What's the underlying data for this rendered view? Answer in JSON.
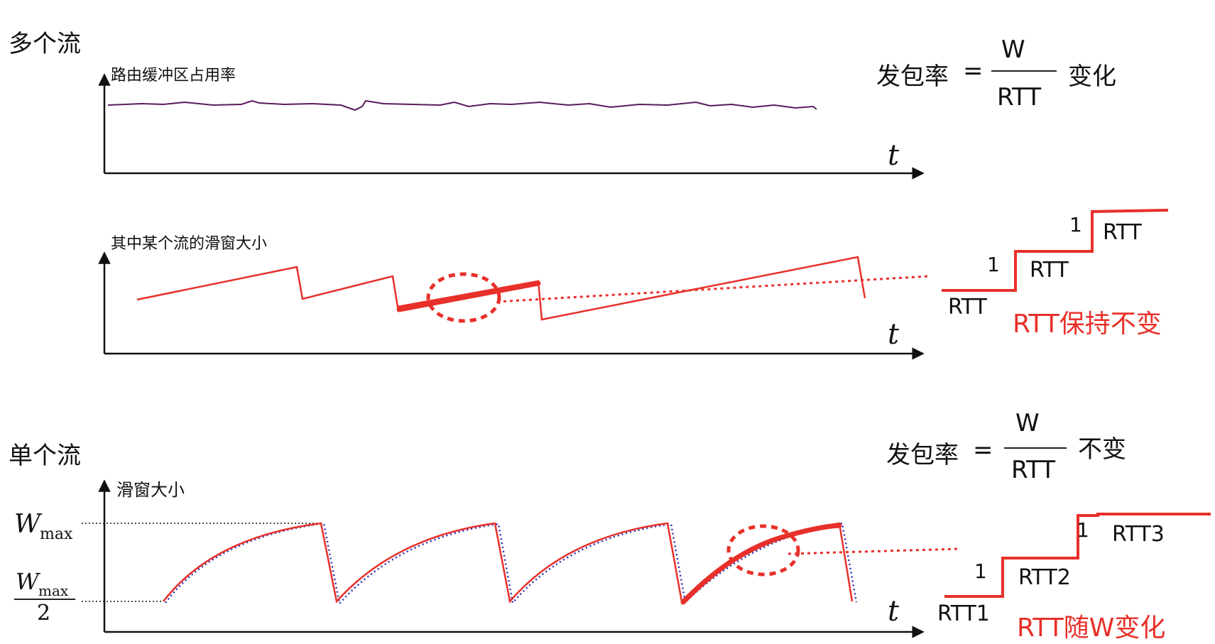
{
  "colors": {
    "red": "#e8302a",
    "purple": "#5b1a5e",
    "blue": "#2a2ab0",
    "axis": "#111111"
  },
  "multi": {
    "title": "多个流",
    "chart1_ylabel": "路由缓冲区占用率",
    "chart2_ylabel": "其中某个流的滑窗大小",
    "t_label": "t",
    "formula": {
      "lhs": "发包率",
      "eq": "=",
      "num": "W",
      "den": "RTT",
      "rhs": "变化"
    },
    "steps": {
      "one_a": "1",
      "one_b": "1",
      "rtt_a": "RTT",
      "rtt_b": "RTT",
      "rtt_c": "RTT",
      "note": "RTT保持不变"
    }
  },
  "single": {
    "title": "单个流",
    "ylabel": "滑窗大小",
    "t_label": "t",
    "wmax_w": "W",
    "wmax_sub": "max",
    "half_w": "W",
    "half_sub": "max",
    "half_den": "2",
    "formula": {
      "lhs": "发包率",
      "eq": "=",
      "num": "W",
      "den": "RTT",
      "rhs": "不变"
    },
    "steps": {
      "one_a": "1",
      "one_b": "1",
      "rtt_1": "RTT1",
      "rtt_2": "RTT2",
      "rtt_3": "RTT3",
      "note": "RTT随W变化"
    }
  }
}
